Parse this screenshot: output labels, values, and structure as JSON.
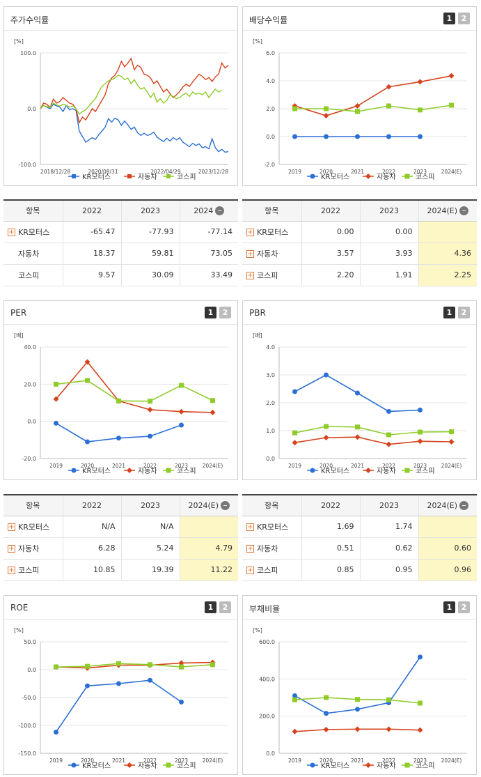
{
  "colors": {
    "kr": "#2b6fd6",
    "auto": "#d6431c",
    "kospi": "#8fcc2a"
  },
  "legend": [
    "KR모터스",
    "자동차",
    "코스피"
  ],
  "stock": {
    "title": "주가수익률",
    "unit": "[%]",
    "table": {
      "header": [
        "항목",
        "2022",
        "2023",
        "2024"
      ],
      "rows": [
        {
          "name": "KR모터스",
          "plus": true,
          "v": [
            "-65.47",
            "-77.93",
            "-77.14"
          ]
        },
        {
          "name": "자동차",
          "plus": false,
          "v": [
            "18.37",
            "59.81",
            "73.05"
          ]
        },
        {
          "name": "코스피",
          "plus": false,
          "v": [
            "9.57",
            "30.09",
            "33.49"
          ]
        }
      ]
    }
  },
  "dividend": {
    "title": "배당수익률",
    "unit": "[%]",
    "table": {
      "header": [
        "항목",
        "2022",
        "2023",
        "2024(E)"
      ],
      "rows": [
        {
          "name": "KR모터스",
          "v": [
            "0.00",
            "0.00",
            ""
          ]
        },
        {
          "name": "자동차",
          "v": [
            "3.57",
            "3.93",
            "4.36"
          ]
        },
        {
          "name": "코스피",
          "v": [
            "2.20",
            "1.91",
            "2.25"
          ]
        }
      ]
    }
  },
  "per": {
    "title": "PER",
    "unit": "[배]",
    "table": {
      "header": [
        "항목",
        "2022",
        "2023",
        "2024(E)"
      ],
      "rows": [
        {
          "name": "KR모터스",
          "v": [
            "N/A",
            "N/A",
            ""
          ]
        },
        {
          "name": "자동차",
          "v": [
            "6.28",
            "5.24",
            "4.79"
          ]
        },
        {
          "name": "코스피",
          "v": [
            "10.85",
            "19.39",
            "11.22"
          ]
        }
      ]
    }
  },
  "pbr": {
    "title": "PBR",
    "unit": "[배]",
    "table": {
      "header": [
        "항목",
        "2022",
        "2023",
        "2024(E)"
      ],
      "rows": [
        {
          "name": "KR모터스",
          "v": [
            "1.69",
            "1.74",
            ""
          ]
        },
        {
          "name": "자동차",
          "v": [
            "0.51",
            "0.62",
            "0.60"
          ]
        },
        {
          "name": "코스피",
          "v": [
            "0.85",
            "0.95",
            "0.96"
          ]
        }
      ]
    }
  },
  "roe": {
    "title": "ROE",
    "unit": "[%]"
  },
  "debt": {
    "title": "부채비율",
    "unit": "[%]"
  },
  "chart_data": [
    {
      "id": "stock",
      "type": "line",
      "title": "주가수익률",
      "ylim": [
        -100,
        100
      ],
      "yticks": [
        "100.0",
        "0.0",
        "-100.0"
      ],
      "xticks": [
        "2018/12/28",
        "2020/08/31",
        "2022/04/29",
        "2023/12/28"
      ],
      "note": "values approx., sampled across 2018/12/28 – 2023/12/28",
      "series": [
        {
          "name": "KR모터스",
          "values": [
            0,
            6,
            3,
            0,
            8,
            5,
            3,
            -5,
            6,
            -2,
            0,
            -3,
            -40,
            -50,
            -60,
            -56,
            -52,
            -55,
            -47,
            -40,
            -33,
            -18,
            -24,
            -17,
            -20,
            -30,
            -22,
            -29,
            -37,
            -33,
            -43,
            -48,
            -44,
            -48,
            -46,
            -42,
            -51,
            -55,
            -59,
            -53,
            -58,
            -52,
            -56,
            -52,
            -60,
            -64,
            -68,
            -62,
            -66,
            -63,
            -70,
            -68,
            -72,
            -54,
            -70,
            -77,
            -73,
            -78,
            -77
          ]
        },
        {
          "name": "자동차",
          "values": [
            0,
            10,
            8,
            2,
            17,
            10,
            13,
            20,
            15,
            10,
            8,
            0,
            -25,
            -15,
            -20,
            -10,
            0,
            -5,
            5,
            15,
            25,
            45,
            55,
            60,
            70,
            85,
            75,
            82,
            90,
            70,
            78,
            74,
            62,
            60,
            55,
            45,
            50,
            40,
            30,
            35,
            27,
            20,
            25,
            31,
            39,
            44,
            40,
            48,
            55,
            62,
            58,
            52,
            56,
            49,
            57,
            62,
            82,
            73,
            78
          ]
        },
        {
          "name": "코스피",
          "values": [
            0,
            6,
            4,
            2,
            10,
            7,
            5,
            8,
            6,
            3,
            5,
            0,
            -10,
            -5,
            -2,
            5,
            12,
            18,
            30,
            40,
            45,
            50,
            52,
            55,
            60,
            58,
            52,
            55,
            45,
            52,
            42,
            35,
            38,
            30,
            20,
            28,
            12,
            18,
            10,
            15,
            25,
            22,
            18,
            20,
            25,
            28,
            22,
            30,
            26,
            28,
            25,
            30,
            20,
            28,
            35,
            30,
            33
          ]
        }
      ]
    },
    {
      "id": "dividend",
      "type": "line",
      "title": "배당수익률",
      "ylim": [
        -2,
        6
      ],
      "yticks": [
        "6.0",
        "4.0",
        "2.0",
        "0.0",
        "-2.0"
      ],
      "categories": [
        "2019",
        "2020",
        "2021",
        "2022",
        "2023",
        "2024(E)"
      ],
      "series": [
        {
          "name": "KR모터스",
          "values": [
            0,
            0,
            0,
            0,
            0,
            null
          ]
        },
        {
          "name": "자동차",
          "values": [
            2.2,
            1.5,
            2.2,
            3.57,
            3.93,
            4.36
          ]
        },
        {
          "name": "코스피",
          "values": [
            2.0,
            2.0,
            1.8,
            2.2,
            1.91,
            2.25
          ]
        }
      ]
    },
    {
      "id": "per",
      "type": "line",
      "title": "PER",
      "ylim": [
        -20,
        40
      ],
      "yticks": [
        "40.0",
        "20.0",
        "0.0",
        "-20.0"
      ],
      "categories": [
        "2019",
        "2020",
        "2021",
        "2022",
        "2023",
        "2024(E)"
      ],
      "series": [
        {
          "name": "KR모터스",
          "values": [
            -1,
            -11,
            -9,
            -8,
            -2,
            null
          ]
        },
        {
          "name": "자동차",
          "values": [
            12,
            32,
            11,
            6.28,
            5.24,
            4.79
          ]
        },
        {
          "name": "코스피",
          "values": [
            20,
            22,
            11,
            10.85,
            19.39,
            11.22
          ]
        }
      ]
    },
    {
      "id": "pbr",
      "type": "line",
      "title": "PBR",
      "ylim": [
        0,
        4
      ],
      "yticks": [
        "4.0",
        "3.0",
        "2.0",
        "1.0",
        "0.0"
      ],
      "categories": [
        "2019",
        "2020",
        "2021",
        "2022",
        "2023",
        "2024(E)"
      ],
      "series": [
        {
          "name": "KR모터스",
          "values": [
            2.4,
            3.0,
            2.35,
            1.69,
            1.74,
            null
          ]
        },
        {
          "name": "자동차",
          "values": [
            0.57,
            0.75,
            0.77,
            0.51,
            0.62,
            0.6
          ]
        },
        {
          "name": "코스피",
          "values": [
            0.92,
            1.15,
            1.13,
            0.85,
            0.95,
            0.96
          ]
        }
      ]
    },
    {
      "id": "roe",
      "type": "line",
      "title": "ROE",
      "ylim": [
        -150,
        50
      ],
      "yticks": [
        "50.0",
        "0.0",
        "-50.0",
        "-100.0",
        "-150.0"
      ],
      "categories": [
        "2019",
        "2020",
        "2021",
        "2022",
        "2023",
        "2024(E)"
      ],
      "series": [
        {
          "name": "KR모터스",
          "values": [
            -112,
            -29,
            -25,
            -19,
            -58,
            null
          ]
        },
        {
          "name": "자동차",
          "values": [
            5,
            3,
            8,
            8,
            12,
            13
          ]
        },
        {
          "name": "코스피",
          "values": [
            5,
            6,
            11,
            9,
            5,
            9
          ]
        }
      ]
    },
    {
      "id": "debt",
      "type": "line",
      "title": "부채비율",
      "ylim": [
        0,
        600
      ],
      "yticks": [
        "600.0",
        "400.0",
        "200.0",
        "0.0"
      ],
      "categories": [
        "2019",
        "2020",
        "2021",
        "2022",
        "2023",
        "2024(E)"
      ],
      "series": [
        {
          "name": "KR모터스",
          "values": [
            310,
            215,
            237,
            272,
            518,
            null
          ]
        },
        {
          "name": "자동차",
          "values": [
            117,
            128,
            130,
            130,
            125,
            null
          ]
        },
        {
          "name": "코스피",
          "values": [
            288,
            300,
            290,
            288,
            270,
            null
          ]
        }
      ]
    }
  ]
}
